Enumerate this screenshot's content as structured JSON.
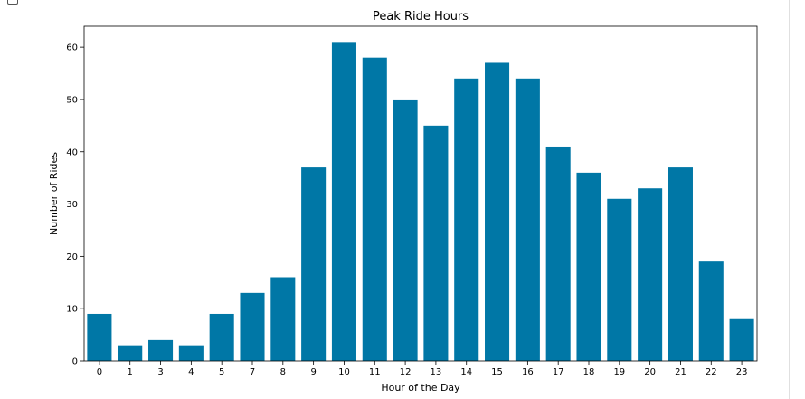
{
  "chart_data": {
    "type": "bar",
    "title": "Peak Ride Hours",
    "xlabel": "Hour of the Day",
    "ylabel": "Number of Rides",
    "categories": [
      "0",
      "1",
      "3",
      "4",
      "5",
      "7",
      "8",
      "9",
      "10",
      "11",
      "12",
      "13",
      "14",
      "15",
      "16",
      "17",
      "18",
      "19",
      "20",
      "21",
      "22",
      "23"
    ],
    "values": [
      9,
      3,
      4,
      3,
      9,
      13,
      16,
      37,
      61,
      58,
      50,
      45,
      54,
      57,
      54,
      41,
      36,
      31,
      33,
      37,
      19,
      8
    ],
    "ylim": [
      0,
      64
    ],
    "yticks": [
      0,
      10,
      20,
      30,
      40,
      50,
      60
    ],
    "bar_color": "#0077a6",
    "grid": false
  }
}
